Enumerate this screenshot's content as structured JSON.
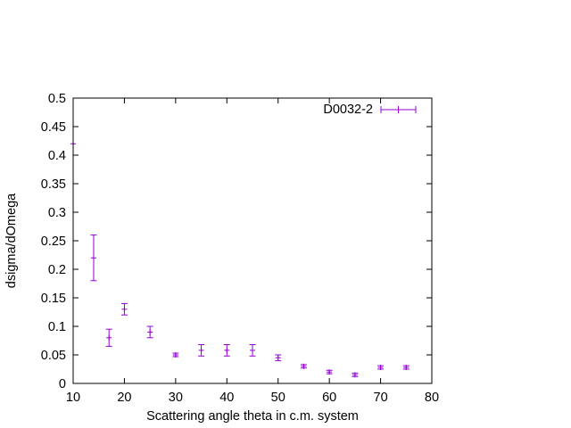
{
  "chart_data": {
    "type": "scatter",
    "title": "",
    "xlabel": "Scattering angle theta in c.m. system",
    "ylabel": "dsigma/dOmega",
    "xlim": [
      10,
      80
    ],
    "ylim": [
      0,
      0.5
    ],
    "xticks": [
      "10",
      "20",
      "30",
      "40",
      "50",
      "60",
      "70",
      "80"
    ],
    "yticks": [
      "0",
      "0.05",
      "0.1",
      "0.15",
      "0.2",
      "0.25",
      "0.3",
      "0.35",
      "0.4",
      "0.45",
      "0.5"
    ],
    "grid": false,
    "legend_position": "top-right",
    "series": [
      {
        "name": "D0032-2",
        "color": "#9400d3",
        "marker": "plus-with-y-errorbars",
        "points": [
          {
            "x": 10,
            "y": 0.42,
            "err": 0.0
          },
          {
            "x": 14,
            "y": 0.22,
            "err": 0.04
          },
          {
            "x": 17,
            "y": 0.08,
            "err": 0.015
          },
          {
            "x": 20,
            "y": 0.13,
            "err": 0.01
          },
          {
            "x": 25,
            "y": 0.09,
            "err": 0.01
          },
          {
            "x": 30,
            "y": 0.05,
            "err": 0.003
          },
          {
            "x": 35,
            "y": 0.058,
            "err": 0.01
          },
          {
            "x": 40,
            "y": 0.058,
            "err": 0.01
          },
          {
            "x": 45,
            "y": 0.058,
            "err": 0.01
          },
          {
            "x": 50,
            "y": 0.045,
            "err": 0.005
          },
          {
            "x": 55,
            "y": 0.03,
            "err": 0.003
          },
          {
            "x": 60,
            "y": 0.02,
            "err": 0.003
          },
          {
            "x": 65,
            "y": 0.015,
            "err": 0.003
          },
          {
            "x": 70,
            "y": 0.028,
            "err": 0.003
          },
          {
            "x": 75,
            "y": 0.028,
            "err": 0.003
          }
        ]
      }
    ]
  }
}
